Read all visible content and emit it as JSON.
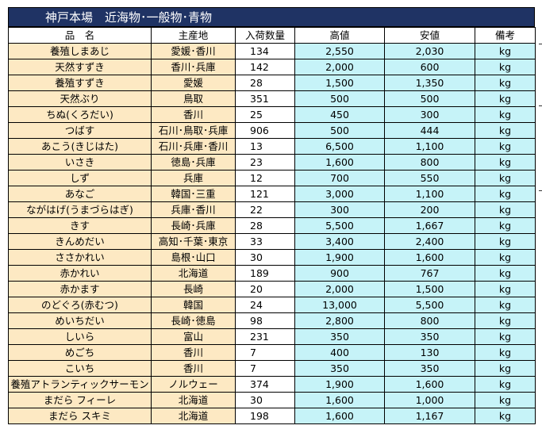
{
  "title": "神戸本場　近海物･一般物･青物",
  "headers": [
    "品　名",
    "主産地",
    "入荷数量",
    "高値",
    "安値",
    "備考"
  ],
  "rows": [
    [
      "養殖しまあじ",
      "愛媛･香川",
      "134",
      "2,550",
      "2,030",
      "kg"
    ],
    [
      "天然すずき",
      "香川･兵庫",
      "142",
      "2,000",
      "600",
      "kg"
    ],
    [
      "養殖すずき",
      "愛媛",
      "28",
      "1,500",
      "1,350",
      "kg"
    ],
    [
      "天然ぶり",
      "鳥取",
      "351",
      "500",
      "500",
      "kg"
    ],
    [
      "ちぬ(くろだい)",
      "香川",
      "25",
      "450",
      "300",
      "kg"
    ],
    [
      "つばす",
      "石川･鳥取･兵庫",
      "906",
      "500",
      "444",
      "kg"
    ],
    [
      "あこう(きじはた)",
      "石川･兵庫･香川",
      "13",
      "6,500",
      "1,100",
      "kg"
    ],
    [
      "いさき",
      "徳島･兵庫",
      "23",
      "1,600",
      "800",
      "kg"
    ],
    [
      "しず",
      "兵庫",
      "12",
      "700",
      "550",
      "kg"
    ],
    [
      "あなご",
      "韓国･三重",
      "121",
      "3,000",
      "1,100",
      "kg"
    ],
    [
      "ながはげ(うまづらはぎ)",
      "兵庫･香川",
      "22",
      "300",
      "200",
      "kg"
    ],
    [
      "きす",
      "長崎･兵庫",
      "28",
      "5,500",
      "1,667",
      "kg"
    ],
    [
      "きんめだい",
      "高知･千葉･東京",
      "33",
      "3,400",
      "2,400",
      "kg"
    ],
    [
      "ささかれい",
      "島根･山口",
      "30",
      "1,900",
      "1,600",
      "kg"
    ],
    [
      "赤かれい",
      "北海道",
      "189",
      "900",
      "767",
      "kg"
    ],
    [
      "赤かます",
      "長崎",
      "20",
      "2,000",
      "1,500",
      "kg"
    ],
    [
      "のどぐろ(赤むつ)",
      "韓国",
      "24",
      "13,000",
      "5,500",
      "kg"
    ],
    [
      "めいちだい",
      "長崎･徳島",
      "98",
      "2,800",
      "800",
      "kg"
    ],
    [
      "しいら",
      "富山",
      "231",
      "350",
      "350",
      "kg"
    ],
    [
      "めごち",
      "香川",
      "7",
      "400",
      "130",
      "kg"
    ],
    [
      "こいち",
      "香川",
      "7",
      "350",
      "350",
      "kg"
    ],
    [
      "養殖アトランティックサーモン",
      "ノルウェー",
      "374",
      "1,900",
      "1,600",
      "kg"
    ],
    [
      "まだら フィーレ",
      "北海道",
      "30",
      "1,600",
      "1,000",
      "kg"
    ],
    [
      "まだら スキミ",
      "北海道",
      "198",
      "1,600",
      "1,167",
      "kg"
    ]
  ]
}
